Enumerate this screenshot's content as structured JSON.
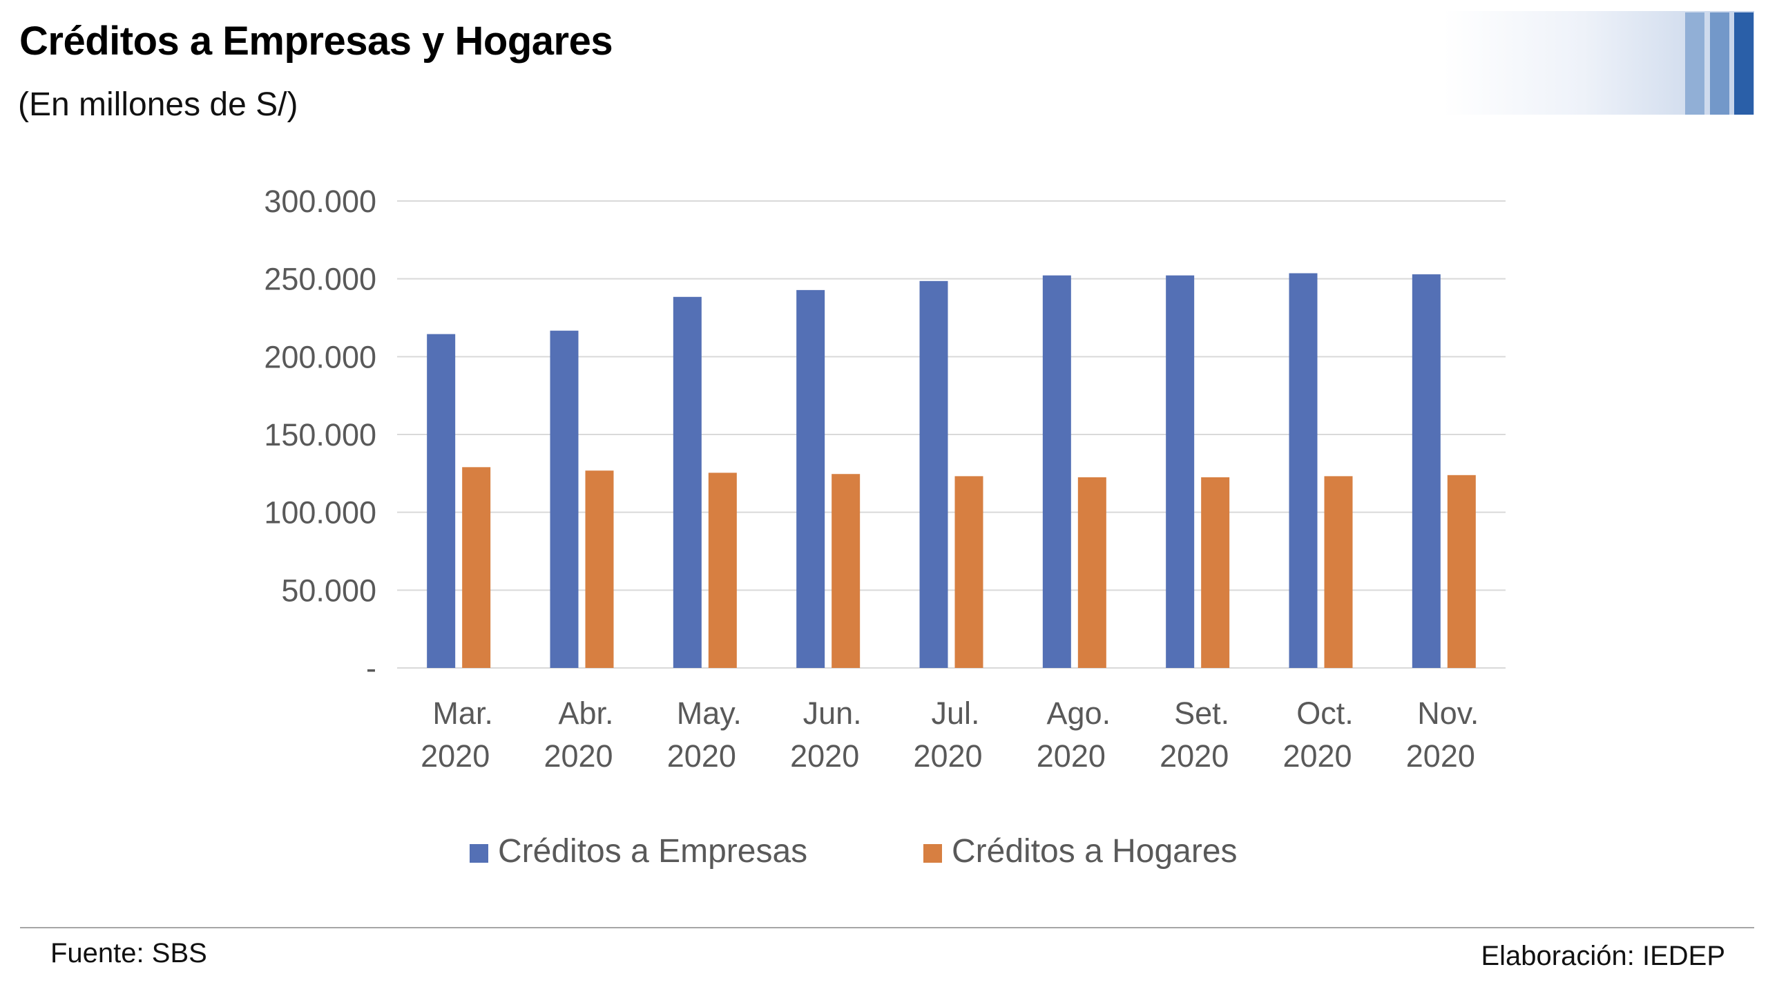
{
  "header": {
    "title": "Créditos a Empresas y Hogares",
    "subtitle": "(En millones de S/)"
  },
  "footer": {
    "source": "Fuente: SBS",
    "credit": "Elaboración: IEDEP"
  },
  "decoration_colors": [
    "#91afd6",
    "#7398c9",
    "#2a5fa8"
  ],
  "chart_data": {
    "type": "bar",
    "title": "Créditos a Empresas y Hogares",
    "subtitle": "(En millones de S/)",
    "xlabel": "",
    "ylabel": "",
    "categories": [
      [
        "Mar.",
        "2020"
      ],
      [
        "Abr.",
        "2020"
      ],
      [
        "May.",
        "2020"
      ],
      [
        "Jun.",
        "2020"
      ],
      [
        "Jul.",
        "2020"
      ],
      [
        "Ago.",
        "2020"
      ],
      [
        "Set.",
        "2020"
      ],
      [
        "Oct.",
        "2020"
      ],
      [
        "Nov.",
        "2020"
      ]
    ],
    "series": [
      {
        "name": "Créditos a Empresas",
        "color": "#5470b5",
        "values": [
          214500,
          216700,
          238400,
          242800,
          248600,
          252200,
          252200,
          253600,
          252900
        ]
      },
      {
        "name": "Créditos a Hogares",
        "color": "#d77f41",
        "values": [
          129000,
          126800,
          125400,
          124600,
          123200,
          122500,
          122500,
          123200,
          123900
        ]
      }
    ],
    "ylim": [
      0,
      300000
    ],
    "yticks": [
      0,
      50000,
      100000,
      150000,
      200000,
      250000,
      300000
    ],
    "ytick_labels": [
      "-",
      "50.000",
      "100.000",
      "150.000",
      "200.000",
      "250.000",
      "300.000"
    ],
    "grid": true,
    "legend": "bottom"
  }
}
